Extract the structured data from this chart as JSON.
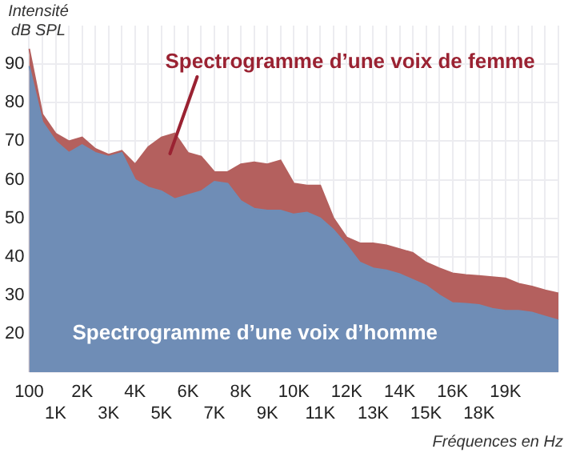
{
  "chart_data": {
    "type": "area",
    "ylabel": "Intensité dB SPL",
    "xlabel": "Fréquences en Hz",
    "categories": [
      "100",
      null,
      "1K",
      null,
      "2K",
      null,
      "3K",
      null,
      "4K",
      null,
      "5K",
      null,
      "6K",
      null,
      "7K",
      null,
      "8K",
      null,
      "9K",
      null,
      "10K",
      null,
      "11K",
      null,
      "12K",
      null,
      "13K",
      null,
      "14K",
      null,
      "15K",
      null,
      "16K",
      null,
      "18K",
      null,
      "19K",
      null,
      null,
      null,
      null
    ],
    "series": [
      {
        "name": "Spectrogramme d’une voix de femme",
        "color": "#b4605e",
        "values": [
          94,
          77,
          72,
          70,
          71,
          68,
          66.5,
          67.5,
          64,
          68.5,
          71,
          72,
          67,
          66,
          62,
          62,
          64,
          64.5,
          64,
          65,
          59,
          58.5,
          58.5,
          50,
          45,
          43.5,
          43.5,
          43,
          42,
          41,
          38.5,
          37,
          35.7,
          35.3,
          35,
          34.7,
          34.4,
          33,
          32.3,
          31.3,
          30.5
        ]
      },
      {
        "name": "Spectrogramme d’une voix d’homme",
        "color": "#6f8db6",
        "values": [
          89.5,
          75,
          70,
          67,
          69,
          67,
          66,
          67,
          60,
          58,
          57,
          55,
          56,
          57,
          59.5,
          59,
          54.5,
          52.5,
          52,
          52,
          51,
          51.5,
          50,
          47,
          43,
          38.5,
          37,
          36.5,
          35.5,
          34,
          32.5,
          30,
          28,
          27.8,
          27.5,
          26.5,
          26,
          26,
          25.5,
          24.5,
          23.5
        ]
      }
    ],
    "ylim": [
      10,
      100
    ],
    "yticks": [
      20,
      30,
      40,
      50,
      60,
      70,
      80,
      90
    ],
    "grid": true,
    "legend": false
  }
}
